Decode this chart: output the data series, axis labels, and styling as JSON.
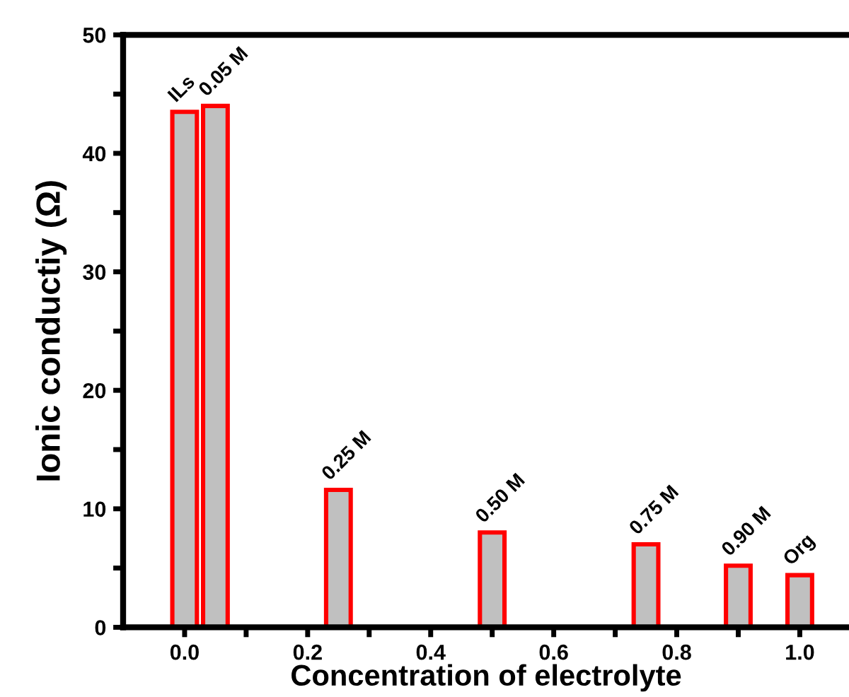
{
  "chart_data": {
    "type": "bar",
    "xlabel": "Concentration of electrolyte",
    "ylabel": "Ionic conductiy (Ω)",
    "x": [
      0.0,
      0.05,
      0.25,
      0.5,
      0.75,
      0.9,
      1.0
    ],
    "values": [
      43.5,
      44.0,
      11.6,
      8.0,
      7.0,
      5.2,
      4.4
    ],
    "color": "#c0c0c0",
    "xlim": [
      -0.1,
      1.08
    ],
    "ylim": [
      0,
      50
    ],
    "xticks": [
      {
        "value": 0.0,
        "label": "0.0"
      },
      {
        "value": 0.1,
        "label": null
      },
      {
        "value": 0.2,
        "label": "0.2"
      },
      {
        "value": 0.3,
        "label": null
      },
      {
        "value": 0.4,
        "label": "0.4"
      },
      {
        "value": 0.5,
        "label": null
      },
      {
        "value": 0.6,
        "label": "0.6"
      },
      {
        "value": 0.7,
        "label": null
      },
      {
        "value": 0.8,
        "label": "0.8"
      },
      {
        "value": 0.9,
        "label": null
      },
      {
        "value": 1.0,
        "label": "1.0"
      }
    ],
    "yticks": [
      0,
      {
        "value": 5,
        "label": null
      },
      10,
      {
        "value": 15,
        "label": null
      },
      20,
      {
        "value": 25,
        "label": null
      },
      30,
      {
        "value": 35,
        "label": null
      },
      40,
      {
        "value": 45,
        "label": null
      },
      50
    ],
    "annotations": [
      {
        "text": "ILs",
        "x": 0.0,
        "y": 43.5
      },
      {
        "text": "0.05 M",
        "x": 0.05,
        "y": 44.0
      },
      {
        "text": "0.25 M",
        "x": 0.25,
        "y": 11.6
      },
      {
        "text": "0.50 M",
        "x": 0.5,
        "y": 8.0
      },
      {
        "text": "0.75 M",
        "x": 0.75,
        "y": 7.0
      },
      {
        "text": "0.90 M",
        "x": 0.9,
        "y": 5.2
      },
      {
        "text": "Org",
        "x": 1.0,
        "y": 4.4
      }
    ],
    "grid": false,
    "legend": false
  }
}
